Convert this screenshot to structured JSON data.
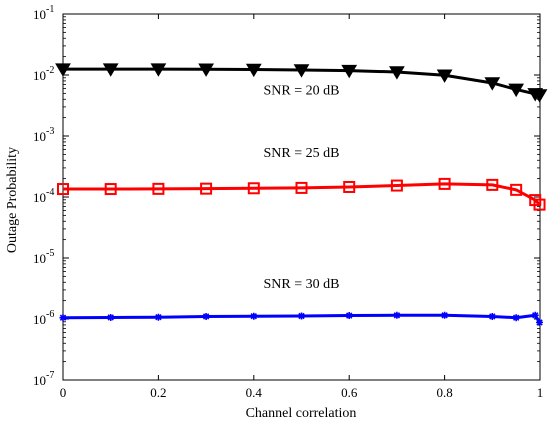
{
  "chart_data": {
    "type": "line",
    "xlabel": "Channel correlation",
    "ylabel": "Outage Probability",
    "xlim": [
      0,
      1
    ],
    "ylim": [
      1e-07,
      0.1
    ],
    "yscale": "log",
    "grid": false,
    "x_ticks": [
      0,
      0.2,
      0.4,
      0.6,
      0.8,
      1
    ],
    "x_tick_labels": [
      "0",
      "0.2",
      "0.4",
      "0.6",
      "0.8",
      "1"
    ],
    "y_ticks": [
      {
        "base": "10",
        "exp": "-1",
        "value": 0.1
      },
      {
        "base": "10",
        "exp": "-2",
        "value": 0.01
      },
      {
        "base": "10",
        "exp": "-3",
        "value": 0.001
      },
      {
        "base": "10",
        "exp": "-4",
        "value": 0.0001
      },
      {
        "base": "10",
        "exp": "-5",
        "value": 1e-05
      },
      {
        "base": "10",
        "exp": "-6",
        "value": 1e-06
      },
      {
        "base": "10",
        "exp": "-7",
        "value": 1e-07
      }
    ],
    "x": [
      0,
      0.1,
      0.2,
      0.3,
      0.4,
      0.5,
      0.6,
      0.7,
      0.8,
      0.9,
      0.95,
      0.99,
      0.999
    ],
    "series": [
      {
        "color": "#000000",
        "marker": "triangle-down",
        "values": [
          0.0125,
          0.0125,
          0.0125,
          0.0124,
          0.0123,
          0.0121,
          0.0118,
          0.0112,
          0.0099,
          0.0074,
          0.0058,
          0.0049,
          0.0047
        ]
      },
      {
        "color": "#ff0000",
        "marker": "square",
        "values": [
          0.000135,
          0.000135,
          0.000136,
          0.000137,
          0.000139,
          0.000141,
          0.000146,
          0.000154,
          0.000164,
          0.000158,
          0.000131,
          8.9e-05,
          7.5e-05
        ]
      },
      {
        "color": "#0000ff",
        "marker": "star",
        "values": [
          1.05e-06,
          1.06e-06,
          1.07e-06,
          1.1e-06,
          1.11e-06,
          1.12e-06,
          1.14e-06,
          1.15e-06,
          1.15e-06,
          1.1e-06,
          1.05e-06,
          1.15e-06,
          8.8e-07
        ]
      }
    ],
    "annotations": [
      {
        "text": "SNR = 20 dB",
        "x": 0.5,
        "y": 0.0048
      },
      {
        "text": "SNR = 25 dB",
        "x": 0.5,
        "y": 0.00045
      },
      {
        "text": "SNR = 30 dB",
        "x": 0.5,
        "y": 3.2e-06
      }
    ]
  }
}
